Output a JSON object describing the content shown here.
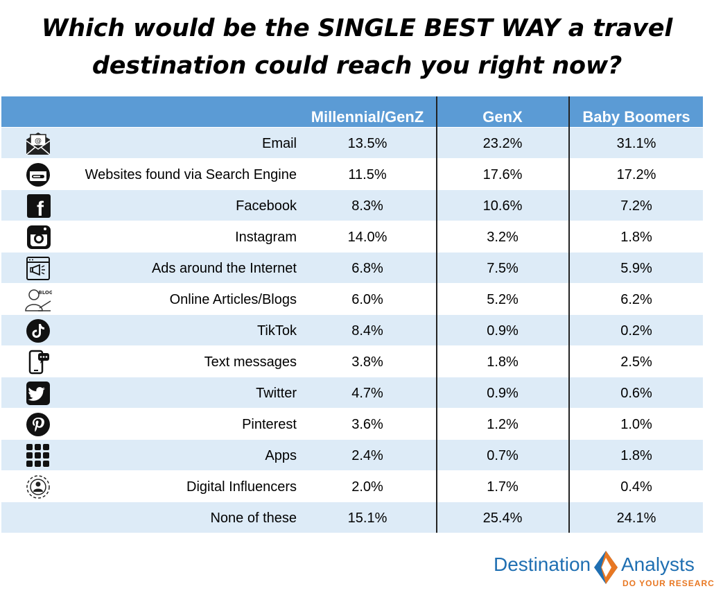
{
  "title_line1": "Which would be the SINGLE BEST WAY a travel",
  "title_line2": "destination could reach you right now?",
  "chart_data": {
    "type": "table",
    "columns": [
      "Millennial/GenZ",
      "GenX",
      "Baby Boomers"
    ],
    "rows": [
      {
        "label": "Email",
        "icon": "email-icon",
        "values": [
          "13.5%",
          "23.2%",
          "31.1%"
        ]
      },
      {
        "label": "Websites found via Search Engine",
        "icon": "search-engine-icon",
        "values": [
          "11.5%",
          "17.6%",
          "17.2%"
        ]
      },
      {
        "label": "Facebook",
        "icon": "facebook-icon",
        "values": [
          "8.3%",
          "10.6%",
          "7.2%"
        ]
      },
      {
        "label": "Instagram",
        "icon": "instagram-icon",
        "values": [
          "14.0%",
          "3.2%",
          "1.8%"
        ]
      },
      {
        "label": "Ads around the Internet",
        "icon": "ads-icon",
        "values": [
          "6.8%",
          "7.5%",
          "5.9%"
        ]
      },
      {
        "label": "Online Articles/Blogs",
        "icon": "blog-icon",
        "values": [
          "6.0%",
          "5.2%",
          "6.2%"
        ]
      },
      {
        "label": "TikTok",
        "icon": "tiktok-icon",
        "values": [
          "8.4%",
          "0.9%",
          "0.2%"
        ]
      },
      {
        "label": "Text messages",
        "icon": "text-message-icon",
        "values": [
          "3.8%",
          "1.8%",
          "2.5%"
        ]
      },
      {
        "label": "Twitter",
        "icon": "twitter-icon",
        "values": [
          "4.7%",
          "0.9%",
          "0.6%"
        ]
      },
      {
        "label": "Pinterest",
        "icon": "pinterest-icon",
        "values": [
          "3.6%",
          "1.2%",
          "1.0%"
        ]
      },
      {
        "label": "Apps",
        "icon": "apps-icon",
        "values": [
          "2.4%",
          "0.7%",
          "1.8%"
        ]
      },
      {
        "label": "Digital Influencers",
        "icon": "influencer-icon",
        "values": [
          "2.0%",
          "1.7%",
          "0.4%"
        ]
      },
      {
        "label": "None of these",
        "icon": "",
        "values": [
          "15.1%",
          "25.4%",
          "24.1%"
        ]
      }
    ],
    "colors": {
      "header": "#5b9bd5",
      "stripe": "#ddebf7",
      "header_text": "#ffffff"
    }
  },
  "logo": {
    "left": "Destination",
    "right": "Analysts",
    "tagline": "DO YOUR RESEARCH",
    "colors": {
      "blue": "#1f6fb2",
      "orange": "#e87722"
    }
  }
}
